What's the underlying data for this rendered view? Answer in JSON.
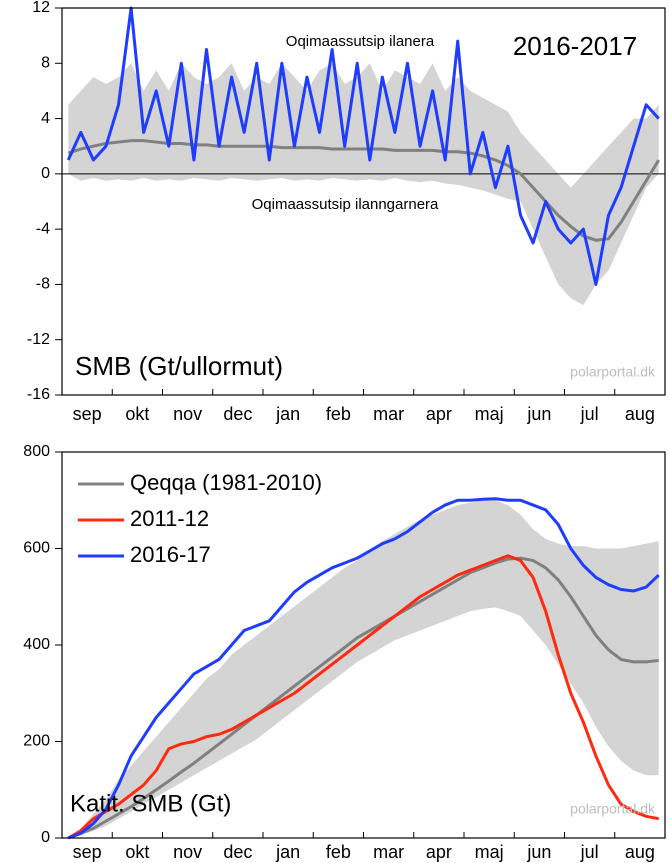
{
  "chart_data": [
    {
      "type": "line",
      "annotations": [
        "Oqimaassutsip ilanera",
        "Oqimaassutsip ilanngarnera"
      ],
      "label": "2016-2017",
      "ylabel": "SMB (Gt/ullormut)",
      "source": "polarportal.dk",
      "categories": [
        null,
        null,
        "sep",
        null,
        null,
        null,
        "okt",
        null,
        null,
        null,
        "nov",
        null,
        null,
        null,
        "dec",
        null,
        null,
        null,
        "jan",
        null,
        null,
        null,
        "feb",
        null,
        null,
        null,
        "mar",
        null,
        null,
        null,
        "apr",
        null,
        null,
        null,
        "maj",
        null,
        null,
        null,
        "jun",
        null,
        null,
        null,
        "jul",
        null,
        null,
        null,
        "aug",
        null
      ],
      "ylim": [
        -16,
        12
      ],
      "yticks": [
        -16,
        -12,
        -8,
        -4,
        0,
        4,
        8,
        12
      ],
      "band": {
        "color": "#d4d4d4",
        "low": [
          0,
          -0.5,
          -0.3,
          -0.5,
          -0.4,
          -0.5,
          -0.3,
          -0.5,
          -0.4,
          -0.5,
          -0.3,
          -0.4,
          -0.5,
          -0.3,
          -0.4,
          -0.5,
          -0.4,
          -0.3,
          -0.5,
          -0.4,
          -0.5,
          -0.3,
          -0.4,
          -0.5,
          -0.4,
          -0.5,
          -0.3,
          -0.5,
          -0.6,
          -0.5,
          -0.7,
          -0.8,
          -1,
          -1.2,
          -1.5,
          -1.8,
          -2,
          -4,
          -6,
          -8,
          -9,
          -9.5,
          -8,
          -7,
          -5,
          -3,
          -1,
          0
        ],
        "high": [
          5,
          6,
          7,
          6.5,
          7,
          8,
          6,
          7.5,
          6,
          8,
          7,
          6.5,
          7,
          8,
          6,
          7,
          6.5,
          8,
          7,
          6,
          7.5,
          8,
          6.5,
          7,
          8,
          6,
          7.5,
          7,
          6.5,
          8,
          6,
          7,
          6,
          5.5,
          5,
          4.5,
          3,
          2,
          1,
          0,
          -1,
          0,
          1,
          2,
          3,
          4,
          4,
          5
        ]
      },
      "series": [
        {
          "color": "#808080",
          "values": [
            1.5,
            1.8,
            2,
            2.2,
            2.3,
            2.4,
            2.4,
            2.3,
            2.2,
            2.2,
            2.1,
            2.1,
            2,
            2,
            2,
            2,
            2,
            1.9,
            1.9,
            1.9,
            1.9,
            1.8,
            1.8,
            1.8,
            1.8,
            1.8,
            1.7,
            1.7,
            1.7,
            1.7,
            1.6,
            1.6,
            1.5,
            1.3,
            1,
            0.6,
            0,
            -1,
            -2,
            -3,
            -3.8,
            -4.5,
            -4.8,
            -4.7,
            -3.5,
            -2,
            -0.5,
            1
          ]
        },
        {
          "color": "#1f3dff",
          "values": [
            1,
            3,
            1,
            2,
            5,
            12,
            3,
            6,
            2,
            8,
            1,
            9,
            2,
            7,
            3,
            8,
            1,
            8,
            2,
            7,
            3,
            9,
            2,
            8,
            1,
            7,
            3,
            8,
            2,
            6,
            1,
            9.6,
            0,
            3,
            -1,
            2,
            -3,
            -5,
            -2,
            -4,
            -5,
            -4,
            -8,
            -3,
            -1,
            2,
            5,
            4
          ]
        }
      ]
    },
    {
      "type": "line",
      "ylabel": "Katit. SMB (Gt)",
      "source": "polarportal.dk",
      "legend": "upper left",
      "categories": [
        null,
        null,
        "sep",
        null,
        null,
        null,
        "okt",
        null,
        null,
        null,
        "nov",
        null,
        null,
        null,
        "dec",
        null,
        null,
        null,
        "jan",
        null,
        null,
        null,
        "feb",
        null,
        null,
        null,
        "mar",
        null,
        null,
        null,
        "apr",
        null,
        null,
        null,
        "maj",
        null,
        null,
        null,
        "jun",
        null,
        null,
        null,
        "jul",
        null,
        null,
        null,
        "aug",
        null
      ],
      "ylim": [
        0,
        800
      ],
      "yticks": [
        0,
        200,
        400,
        600,
        800
      ],
      "band": {
        "color": "#d4d4d4",
        "low": [
          0,
          5,
          15,
          25,
          40,
          55,
          70,
          85,
          100,
          115,
          130,
          145,
          160,
          175,
          190,
          205,
          225,
          245,
          265,
          285,
          305,
          325,
          345,
          365,
          380,
          395,
          410,
          420,
          430,
          440,
          450,
          460,
          470,
          475,
          478,
          470,
          460,
          430,
          400,
          360,
          320,
          280,
          230,
          190,
          160,
          140,
          130,
          130
        ],
        "high": [
          0,
          20,
          50,
          80,
          120,
          150,
          180,
          210,
          240,
          270,
          300,
          330,
          350,
          380,
          400,
          420,
          440,
          460,
          480,
          500,
          520,
          540,
          560,
          575,
          595,
          615,
          630,
          645,
          660,
          670,
          680,
          690,
          695,
          700,
          700,
          690,
          670,
          640,
          620,
          610,
          605,
          605,
          600,
          600,
          600,
          605,
          610,
          615
        ]
      },
      "series": [
        {
          "name": "Qeqqa (1981-2010)",
          "color": "#808080",
          "values": [
            0,
            10,
            20,
            35,
            50,
            65,
            82,
            100,
            118,
            137,
            155,
            175,
            195,
            215,
            235,
            255,
            275,
            295,
            315,
            335,
            355,
            375,
            395,
            415,
            430,
            445,
            460,
            475,
            490,
            505,
            520,
            535,
            550,
            560,
            570,
            578,
            580,
            575,
            560,
            535,
            500,
            460,
            420,
            390,
            370,
            365,
            365,
            368
          ]
        },
        {
          "name": "2011-12",
          "color": "#ff2a10",
          "values": [
            0,
            15,
            40,
            55,
            70,
            90,
            110,
            140,
            185,
            195,
            200,
            210,
            215,
            225,
            240,
            255,
            270,
            285,
            300,
            320,
            340,
            360,
            380,
            400,
            420,
            440,
            460,
            480,
            500,
            515,
            530,
            545,
            555,
            565,
            575,
            585,
            575,
            540,
            470,
            380,
            300,
            240,
            170,
            110,
            70,
            55,
            45,
            40
          ]
        },
        {
          "name": "2016-17",
          "color": "#1f3dff",
          "values": [
            0,
            10,
            30,
            60,
            110,
            170,
            210,
            250,
            280,
            310,
            340,
            355,
            370,
            400,
            430,
            440,
            450,
            480,
            510,
            530,
            545,
            560,
            570,
            580,
            595,
            610,
            620,
            635,
            655,
            675,
            690,
            700,
            700,
            702,
            703,
            700,
            700,
            690,
            680,
            650,
            600,
            565,
            540,
            525,
            515,
            512,
            520,
            545
          ]
        }
      ]
    }
  ]
}
